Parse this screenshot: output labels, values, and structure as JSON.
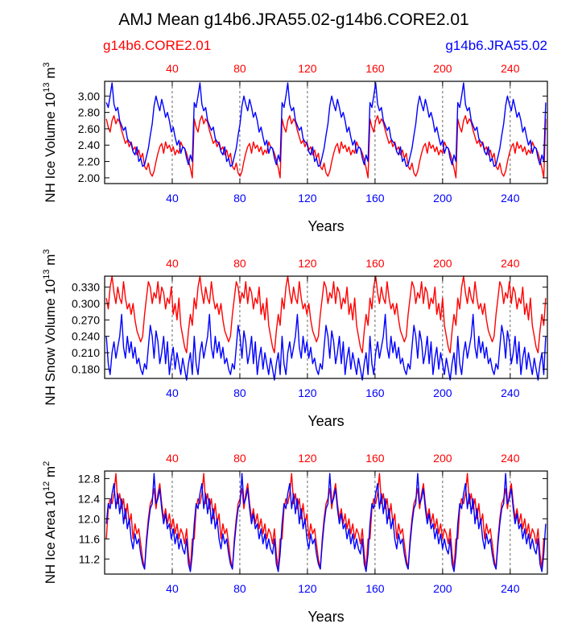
{
  "chart_data": {
    "title": "AMJ Mean g14b6.JRA55.02-g14b6.CORE2.01",
    "series": [
      {
        "name": "g14b6.CORE2.01",
        "color": "#ff0000"
      },
      {
        "name": "g14b6.JRA55.02",
        "color": "#0000ff"
      }
    ],
    "panels": [
      {
        "type": "line",
        "ylabel": {
          "main": "NH Ice Volume 10",
          "exp": "13",
          "unit": " m",
          "unit_exp": "3"
        },
        "xlabel": "Years",
        "xlim": [
          0,
          262
        ],
        "ylim": [
          1.93,
          3.18
        ],
        "yticks": [
          "2.00",
          "2.20",
          "2.40",
          "2.60",
          "2.80",
          "3.00"
        ],
        "xticks": [
          "40",
          "80",
          "120",
          "160",
          "200",
          "240"
        ],
        "top_xticks": [
          "40",
          "80",
          "120",
          "160",
          "200",
          "240"
        ],
        "x_gridlines": [
          40,
          80,
          120,
          160,
          200,
          240
        ],
        "cycle": [
          {
            "values": [
              2.72,
              2.62,
              2.56,
              2.7,
              2.76,
              2.66,
              2.72,
              2.68,
              2.58,
              2.5,
              2.42,
              2.46,
              2.38,
              2.44,
              2.34,
              2.38,
              2.28,
              2.34,
              2.24,
              2.3,
              2.14,
              2.1,
              2.18,
              2.06,
              2.02,
              2.08,
              2.2,
              2.3,
              2.38,
              2.42,
              2.3,
              2.44,
              2.36,
              2.4,
              2.32,
              2.38,
              2.28,
              2.34,
              2.3,
              2.44,
              2.38,
              2.36,
              2.3,
              2.22,
              2.12,
              2.0
            ]
          },
          {
            "values": [
              2.92,
              2.86,
              3.0,
              3.16,
              2.9,
              2.82,
              2.86,
              2.7,
              2.64,
              2.58,
              2.62,
              2.48,
              2.44,
              2.42,
              2.32,
              2.28,
              2.38,
              2.2,
              2.24,
              2.14,
              2.16,
              2.26,
              2.36,
              2.52,
              2.66,
              2.88,
              3.0,
              2.9,
              2.82,
              2.96,
              2.86,
              2.74,
              2.8,
              2.7,
              2.56,
              2.62,
              2.5,
              2.4,
              2.46,
              2.3,
              2.38,
              2.36,
              2.24,
              2.16,
              2.28,
              2.2
            ]
          }
        ]
      },
      {
        "type": "line",
        "ylabel": {
          "main": "NH Snow Volume 10",
          "exp": "13",
          "unit": " m",
          "unit_exp": "3"
        },
        "xlabel": "Years",
        "xlim": [
          0,
          262
        ],
        "ylim": [
          0.163,
          0.35
        ],
        "yticks": [
          "0.180",
          "0.210",
          "0.240",
          "0.270",
          "0.300",
          "0.330"
        ],
        "xticks": [
          "40",
          "80",
          "120",
          "160",
          "200",
          "240"
        ],
        "top_xticks": [
          "40",
          "80",
          "120",
          "160",
          "200",
          "240"
        ],
        "x_gridlines": [
          40,
          80,
          120,
          160,
          200,
          240
        ],
        "cycle": [
          {
            "values": [
              0.31,
              0.29,
              0.33,
              0.35,
              0.32,
              0.3,
              0.33,
              0.31,
              0.3,
              0.34,
              0.31,
              0.29,
              0.3,
              0.28,
              0.3,
              0.27,
              0.25,
              0.24,
              0.23,
              0.24,
              0.28,
              0.31,
              0.34,
              0.33,
              0.3,
              0.32,
              0.31,
              0.34,
              0.3,
              0.33,
              0.32,
              0.29,
              0.31,
              0.3,
              0.33,
              0.28,
              0.3,
              0.27,
              0.31,
              0.26,
              0.24,
              0.22,
              0.21,
              0.25,
              0.28,
              0.26
            ]
          },
          {
            "values": [
              0.24,
              0.19,
              0.17,
              0.21,
              0.23,
              0.2,
              0.22,
              0.24,
              0.28,
              0.22,
              0.2,
              0.24,
              0.21,
              0.23,
              0.2,
              0.22,
              0.19,
              0.2,
              0.18,
              0.17,
              0.19,
              0.18,
              0.22,
              0.26,
              0.24,
              0.2,
              0.25,
              0.23,
              0.19,
              0.21,
              0.24,
              0.19,
              0.23,
              0.17,
              0.2,
              0.22,
              0.18,
              0.21,
              0.19,
              0.17,
              0.2,
              0.18,
              0.16,
              0.19,
              0.21,
              0.17
            ]
          }
        ]
      },
      {
        "type": "line",
        "ylabel": {
          "main": "NH Ice Area 10",
          "exp": "12",
          "unit": " m",
          "unit_exp": "2"
        },
        "xlabel": "Years",
        "xlim": [
          0,
          262
        ],
        "ylim": [
          10.9,
          12.95
        ],
        "yticks": [
          "11.2",
          "11.6",
          "12.0",
          "12.4",
          "12.8"
        ],
        "xticks": [
          "40",
          "80",
          "120",
          "160",
          "200",
          "240"
        ],
        "top_xticks": [
          "40",
          "80",
          "120",
          "160",
          "200",
          "240"
        ],
        "x_gridlines": [
          40,
          80,
          120,
          160,
          200,
          240
        ],
        "cycle": [
          {
            "values": [
              11.6,
              12.2,
              12.4,
              12.3,
              12.5,
              12.9,
              12.3,
              12.5,
              12.2,
              12.4,
              12.0,
              12.3,
              11.9,
              12.1,
              11.6,
              11.9,
              11.7,
              11.8,
              11.5,
              11.2,
              11.0,
              11.6,
              12.0,
              12.3,
              12.4,
              12.6,
              12.2,
              12.5,
              12.7,
              12.3,
              12.0,
              12.2,
              11.9,
              12.1,
              11.8,
              12.0,
              11.7,
              11.9,
              11.6,
              11.8,
              11.7,
              11.5,
              11.8,
              11.3,
              11.0,
              11.6
            ]
          },
          {
            "values": [
              11.9,
              12.3,
              12.2,
              12.5,
              12.7,
              12.2,
              12.5,
              12.1,
              12.4,
              11.9,
              12.2,
              11.8,
              12.0,
              11.6,
              11.4,
              11.7,
              11.5,
              11.6,
              11.3,
              11.1,
              11.0,
              11.5,
              11.9,
              12.2,
              12.3,
              12.9,
              12.3,
              12.4,
              12.6,
              12.2,
              11.9,
              12.1,
              11.8,
              11.9,
              11.6,
              11.8,
              11.5,
              11.7,
              11.4,
              11.6,
              11.4,
              11.3,
              11.6,
              11.1,
              10.95,
              11.3
            ]
          }
        ]
      }
    ]
  }
}
